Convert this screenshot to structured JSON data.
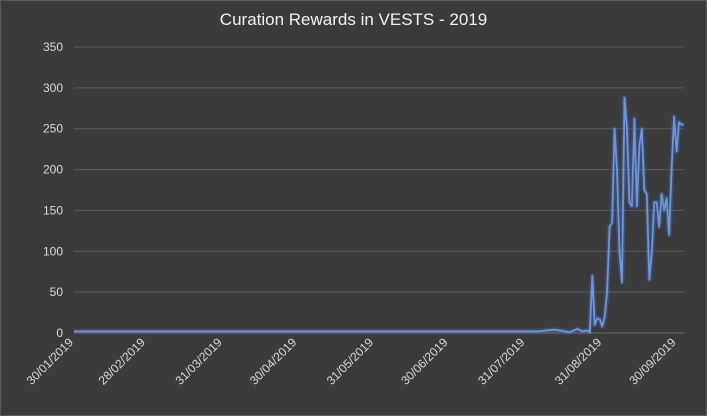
{
  "chart_data": {
    "type": "line",
    "title": "Curation Rewards in VESTS - 2019",
    "xlabel": "",
    "ylabel": "",
    "ylim": [
      0,
      350
    ],
    "yticks": [
      0,
      50,
      100,
      150,
      200,
      250,
      300,
      350
    ],
    "xlim": [
      "2019-01-30",
      "2019-10-03"
    ],
    "xtick_labels": [
      "30/01/2019",
      "28/02/2019",
      "31/03/2019",
      "30/04/2019",
      "31/05/2019",
      "30/06/2019",
      "31/07/2019",
      "31/08/2019",
      "30/09/2019"
    ],
    "xtick_dates": [
      "2019-01-30",
      "2019-02-28",
      "2019-03-31",
      "2019-04-30",
      "2019-05-31",
      "2019-06-30",
      "2019-07-31",
      "2019-08-31",
      "2019-09-30"
    ],
    "grid": true,
    "series_color": "#4472c4",
    "series": [
      {
        "x": [
          "2019-01-30",
          "2019-08-05",
          "2019-08-12",
          "2019-08-16",
          "2019-08-18",
          "2019-08-21",
          "2019-08-23",
          "2019-08-25",
          "2019-08-26",
          "2019-08-27",
          "2019-08-28",
          "2019-08-29",
          "2019-08-30",
          "2019-08-31",
          "2019-09-01",
          "2019-09-02",
          "2019-09-03",
          "2019-09-04",
          "2019-09-05",
          "2019-09-06",
          "2019-09-07",
          "2019-09-08",
          "2019-09-09",
          "2019-09-10",
          "2019-09-11",
          "2019-09-12",
          "2019-09-13",
          "2019-09-14",
          "2019-09-15",
          "2019-09-16",
          "2019-09-17",
          "2019-09-18",
          "2019-09-19",
          "2019-09-20",
          "2019-09-21",
          "2019-09-22",
          "2019-09-23",
          "2019-09-24",
          "2019-09-25",
          "2019-09-26",
          "2019-09-27",
          "2019-09-28",
          "2019-09-29",
          "2019-09-30",
          "2019-10-01",
          "2019-10-02",
          "2019-10-03"
        ],
        "y": [
          2,
          2,
          4,
          2,
          1,
          5,
          2,
          3,
          1,
          70,
          10,
          18,
          17,
          8,
          20,
          50,
          130,
          135,
          250,
          200,
          100,
          62,
          288,
          250,
          160,
          155,
          262,
          155,
          230,
          250,
          175,
          170,
          65,
          100,
          160,
          160,
          130,
          170,
          150,
          165,
          120,
          200,
          265,
          222,
          258,
          255,
          255
        ]
      }
    ]
  }
}
